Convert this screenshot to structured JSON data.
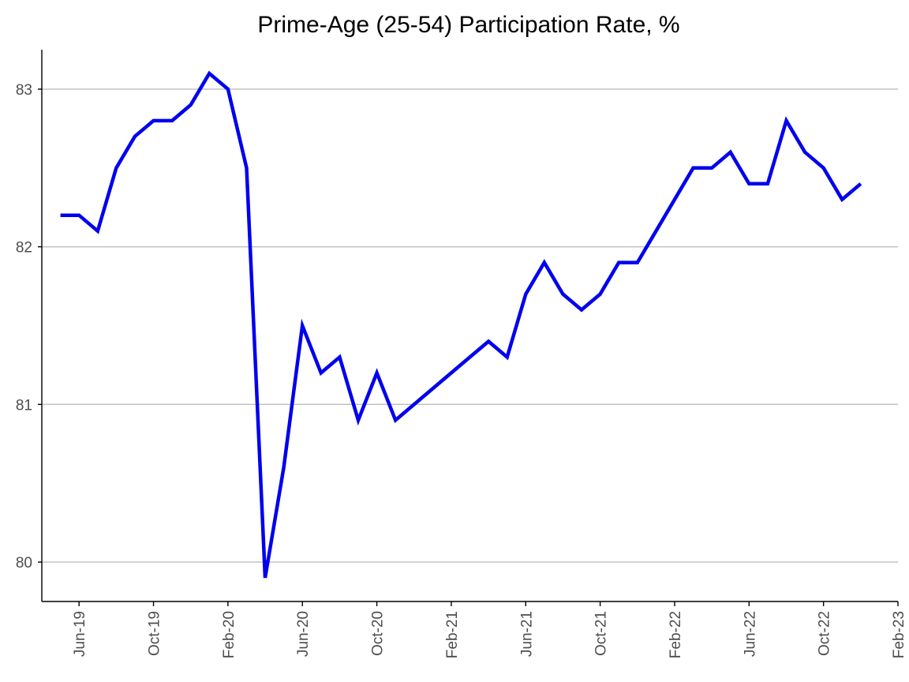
{
  "chart_data": {
    "type": "line",
    "title": "Prime-Age (25-54) Participation Rate, %",
    "xlabel": "",
    "ylabel": "",
    "x_tick_labels": [
      "Jun-19",
      "Oct-19",
      "Feb-20",
      "Jun-20",
      "Oct-20",
      "Feb-21",
      "Jun-21",
      "Oct-21",
      "Feb-22",
      "Jun-22",
      "Oct-22",
      "Feb-23"
    ],
    "y_tick_labels": [
      "80",
      "81",
      "82",
      "83"
    ],
    "y_ticks": [
      80,
      81,
      82,
      83
    ],
    "ylim": [
      79.75,
      83.25
    ],
    "xlim": [
      "2019-04-01",
      "2023-02-01"
    ],
    "grid": "horizontal major",
    "legend": "none",
    "line_color": "#0000ee",
    "series": [
      {
        "x": [
          "2019-05",
          "2019-06",
          "2019-07",
          "2019-08",
          "2019-09",
          "2019-10",
          "2019-11",
          "2019-12",
          "2020-01",
          "2020-02",
          "2020-03",
          "2020-04",
          "2020-05",
          "2020-06",
          "2020-07",
          "2020-08",
          "2020-09",
          "2020-10",
          "2020-11",
          "2020-12",
          "2021-01",
          "2021-02",
          "2021-03",
          "2021-04",
          "2021-05",
          "2021-06",
          "2021-07",
          "2021-08",
          "2021-09",
          "2021-10",
          "2021-11",
          "2021-12",
          "2022-01",
          "2022-02",
          "2022-03",
          "2022-04",
          "2022-05",
          "2022-06",
          "2022-07",
          "2022-08",
          "2022-09",
          "2022-10",
          "2022-11",
          "2022-12"
        ],
        "values": [
          82.2,
          82.2,
          82.1,
          82.5,
          82.7,
          82.8,
          82.8,
          82.9,
          83.1,
          83.0,
          82.5,
          79.9,
          80.6,
          81.5,
          81.2,
          81.3,
          80.9,
          81.2,
          80.9,
          81.0,
          81.1,
          81.2,
          81.3,
          81.4,
          81.3,
          81.7,
          81.9,
          81.7,
          81.6,
          81.7,
          81.9,
          81.9,
          82.1,
          82.3,
          82.5,
          82.5,
          82.6,
          82.4,
          82.4,
          82.8,
          82.6,
          82.5,
          82.3,
          82.4
        ]
      }
    ]
  }
}
